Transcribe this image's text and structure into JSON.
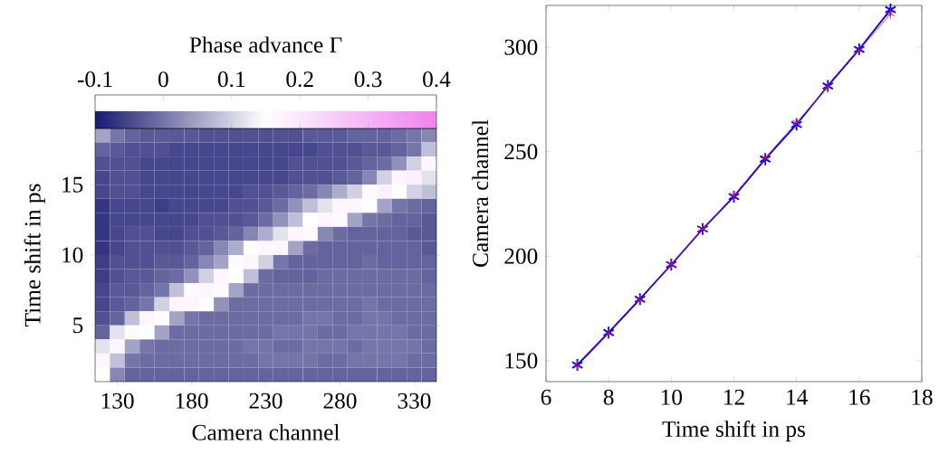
{
  "chart_data": [
    {
      "type": "heatmap",
      "clabel": "Phase advance Γ",
      "xlabel": "Camera channel",
      "ylabel": "Time shift in ps",
      "xlim": [
        115,
        345
      ],
      "xticks": [
        130,
        180,
        230,
        280,
        330
      ],
      "ylim": [
        1,
        19
      ],
      "yticks": [
        5,
        10,
        15
      ],
      "clim": [
        -0.1,
        0.4
      ],
      "cticks": [
        -0.1,
        0,
        0.1,
        0.2,
        0.3,
        0.4
      ],
      "x": [
        120,
        130,
        140,
        150,
        160,
        170,
        180,
        190,
        200,
        210,
        220,
        230,
        240,
        250,
        260,
        270,
        280,
        290,
        300,
        310,
        320,
        330,
        340
      ],
      "y": [
        18.5,
        17.5,
        16.5,
        15.5,
        14.5,
        13.5,
        12.5,
        11.5,
        10.5,
        9.5,
        8.5,
        7.5,
        6.5,
        5.5,
        4.5,
        3.5,
        2.5,
        1.5
      ],
      "cells": [
        [
          0.05,
          0.0,
          -0.02,
          -0.03,
          -0.03,
          -0.03,
          -0.03,
          -0.04,
          -0.04,
          -0.04,
          -0.04,
          -0.04,
          -0.04,
          -0.04,
          -0.03,
          -0.03,
          -0.03,
          -0.02,
          -0.02,
          -0.02,
          -0.01,
          0.0,
          0.02
        ],
        [
          -0.02,
          -0.03,
          -0.04,
          -0.04,
          -0.04,
          -0.05,
          -0.05,
          -0.05,
          -0.05,
          -0.05,
          -0.05,
          -0.05,
          -0.05,
          -0.05,
          -0.05,
          -0.04,
          -0.04,
          -0.04,
          -0.03,
          -0.03,
          -0.02,
          0.0,
          0.08
        ],
        [
          -0.04,
          -0.04,
          -0.04,
          -0.05,
          -0.05,
          -0.05,
          -0.05,
          -0.05,
          -0.05,
          -0.05,
          -0.05,
          -0.05,
          -0.05,
          -0.04,
          -0.04,
          -0.04,
          -0.04,
          -0.03,
          -0.02,
          -0.01,
          0.03,
          0.1,
          0.17
        ],
        [
          -0.05,
          -0.04,
          -0.04,
          -0.05,
          -0.05,
          -0.05,
          -0.05,
          -0.05,
          -0.05,
          -0.05,
          -0.05,
          -0.05,
          -0.05,
          -0.04,
          -0.04,
          -0.04,
          -0.03,
          -0.02,
          0.02,
          0.1,
          0.17,
          0.18,
          0.12
        ],
        [
          -0.05,
          -0.04,
          -0.04,
          -0.05,
          -0.05,
          -0.05,
          -0.05,
          -0.05,
          -0.05,
          -0.05,
          -0.04,
          -0.04,
          -0.03,
          -0.02,
          -0.01,
          0.02,
          0.06,
          0.1,
          0.16,
          0.18,
          0.15,
          0.1,
          0.08
        ],
        [
          -0.07,
          -0.05,
          -0.05,
          -0.05,
          -0.06,
          -0.05,
          -0.05,
          -0.05,
          -0.05,
          -0.04,
          -0.04,
          -0.03,
          -0.01,
          0.03,
          0.08,
          0.12,
          0.17,
          0.17,
          0.15,
          0.05,
          0.0,
          -0.01,
          -0.02
        ],
        [
          -0.07,
          -0.05,
          -0.05,
          -0.05,
          -0.05,
          -0.05,
          -0.05,
          -0.04,
          -0.04,
          -0.04,
          -0.03,
          -0.01,
          0.03,
          0.08,
          0.15,
          0.17,
          0.16,
          0.05,
          0.0,
          -0.01,
          -0.02,
          -0.02,
          -0.03
        ],
        [
          -0.07,
          -0.05,
          -0.04,
          -0.04,
          -0.05,
          -0.05,
          -0.04,
          -0.04,
          -0.03,
          -0.02,
          0.02,
          0.06,
          0.12,
          0.17,
          0.16,
          0.02,
          -0.01,
          -0.02,
          -0.02,
          -0.02,
          -0.02,
          -0.03,
          -0.03
        ],
        [
          -0.07,
          -0.05,
          -0.04,
          -0.04,
          -0.04,
          -0.04,
          -0.03,
          -0.02,
          0.02,
          0.06,
          0.15,
          0.17,
          0.17,
          0.05,
          -0.01,
          -0.02,
          -0.02,
          -0.02,
          -0.02,
          -0.02,
          -0.02,
          -0.02,
          -0.03
        ],
        [
          -0.06,
          -0.04,
          -0.04,
          -0.04,
          -0.03,
          -0.03,
          -0.02,
          0.02,
          0.05,
          0.16,
          0.17,
          0.1,
          0.0,
          -0.02,
          -0.02,
          -0.02,
          -0.02,
          -0.02,
          -0.01,
          -0.02,
          -0.02,
          -0.02,
          -0.02
        ],
        [
          -0.06,
          -0.04,
          -0.03,
          -0.03,
          -0.02,
          -0.01,
          0.03,
          0.1,
          0.17,
          0.15,
          0.08,
          -0.01,
          -0.02,
          -0.02,
          -0.02,
          -0.01,
          -0.01,
          -0.01,
          -0.01,
          -0.01,
          -0.01,
          -0.01,
          -0.02
        ],
        [
          -0.05,
          -0.03,
          -0.03,
          -0.02,
          0.0,
          0.08,
          0.16,
          0.17,
          0.16,
          0.05,
          -0.01,
          -0.01,
          -0.01,
          -0.01,
          -0.01,
          -0.01,
          -0.01,
          -0.01,
          -0.01,
          -0.01,
          -0.01,
          -0.01,
          -0.01
        ],
        [
          -0.05,
          -0.03,
          -0.02,
          0.0,
          0.1,
          0.17,
          0.17,
          0.15,
          0.03,
          -0.01,
          -0.01,
          -0.01,
          -0.01,
          -0.01,
          -0.01,
          -0.01,
          -0.01,
          -0.01,
          0.0,
          -0.01,
          -0.01,
          -0.01,
          -0.01
        ],
        [
          -0.04,
          -0.02,
          0.08,
          0.17,
          0.15,
          0.05,
          0.0,
          -0.01,
          -0.01,
          -0.01,
          -0.01,
          -0.01,
          -0.01,
          -0.01,
          0.0,
          0.0,
          -0.01,
          -0.01,
          0.0,
          0.0,
          -0.01,
          -0.01,
          -0.01
        ],
        [
          -0.02,
          0.12,
          0.16,
          0.15,
          0.05,
          -0.01,
          -0.01,
          -0.01,
          -0.01,
          -0.01,
          -0.01,
          -0.01,
          0.0,
          0.0,
          0.0,
          -0.01,
          -0.01,
          0.0,
          0.0,
          0.0,
          0.0,
          -0.01,
          -0.01
        ],
        [
          0.12,
          0.17,
          0.05,
          0.0,
          -0.01,
          -0.01,
          -0.01,
          -0.01,
          -0.01,
          -0.01,
          0.0,
          0.0,
          -0.01,
          -0.01,
          0.0,
          0.0,
          0.0,
          -0.01,
          0.0,
          0.0,
          0.0,
          0.0,
          -0.01
        ],
        [
          0.17,
          0.08,
          0.0,
          -0.01,
          -0.01,
          -0.01,
          -0.01,
          -0.01,
          -0.01,
          -0.01,
          -0.01,
          0.0,
          0.0,
          0.0,
          0.0,
          -0.01,
          -0.01,
          0.0,
          0.0,
          0.0,
          0.0,
          -0.01,
          -0.01
        ],
        [
          0.15,
          0.02,
          -0.02,
          -0.02,
          -0.02,
          -0.02,
          -0.02,
          -0.02,
          -0.02,
          -0.02,
          -0.02,
          -0.02,
          -0.02,
          -0.02,
          -0.02,
          -0.02,
          -0.02,
          -0.02,
          -0.02,
          -0.02,
          -0.02,
          -0.02,
          -0.02
        ]
      ]
    },
    {
      "type": "line",
      "xlabel": "Time shift in ps",
      "ylabel": "Camera channel",
      "marker": "cross",
      "xlim": [
        6,
        18
      ],
      "xticks": [
        6,
        8,
        10,
        12,
        14,
        16,
        18
      ],
      "ylim": [
        140,
        320
      ],
      "yticks": [
        150,
        200,
        250,
        300
      ],
      "x": [
        7,
        8,
        9,
        10,
        11,
        12,
        13,
        14,
        15,
        16,
        17
      ],
      "series": [
        {
          "color": "#0000ff",
          "values": [
            148,
            163.5,
            179.5,
            196,
            213,
            228.5,
            246.5,
            263,
            281.5,
            299,
            318
          ]
        },
        {
          "color": "#dc143c",
          "values": [
            147.5,
            163,
            179,
            196,
            213,
            229,
            247,
            264,
            281,
            298.5,
            316
          ]
        }
      ]
    }
  ]
}
